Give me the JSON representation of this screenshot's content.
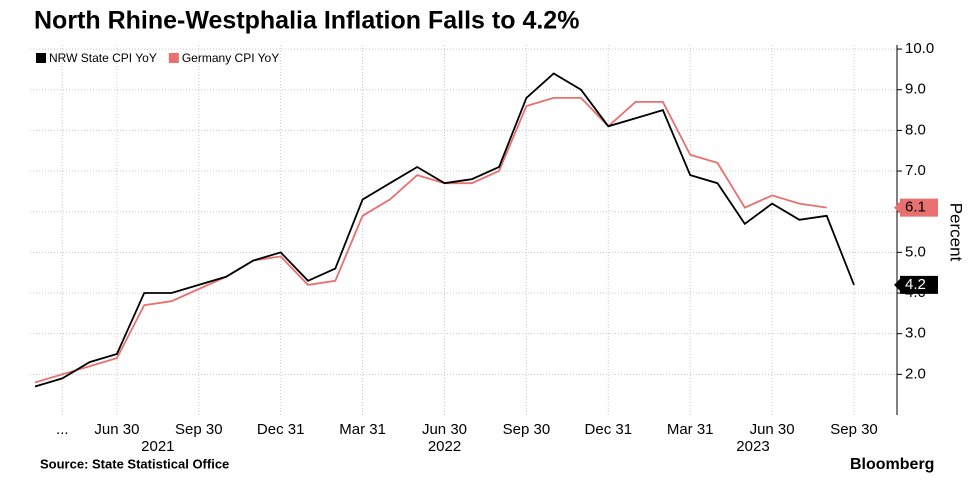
{
  "chart_data": {
    "type": "line",
    "title": "North Rhine-Westphalia Inflation Falls to 4.2%",
    "y_axis_label": "Percent",
    "source": "Source: State Statistical Office",
    "brand": "Bloomberg",
    "categories": [
      null,
      "...",
      null,
      "Jun 30",
      null,
      null,
      "Sep 30",
      null,
      null,
      "Dec 31",
      null,
      null,
      "Mar 31",
      null,
      null,
      "Jun 30",
      null,
      null,
      "Sep 30",
      null,
      null,
      "Dec 31",
      null,
      null,
      "Mar 31",
      null,
      null,
      "Jun 30",
      null,
      null,
      "Sep 30"
    ],
    "years": [
      "2021",
      "2022",
      "2023"
    ],
    "series": [
      {
        "name": "NRW State CPI YoY",
        "color": "#000000",
        "values": [
          1.7,
          1.9,
          2.3,
          2.5,
          4.0,
          4.0,
          4.2,
          4.4,
          4.8,
          5.0,
          4.3,
          4.6,
          6.3,
          6.7,
          7.1,
          6.7,
          6.8,
          7.1,
          8.8,
          9.4,
          9.0,
          8.1,
          8.3,
          8.5,
          6.9,
          6.7,
          5.7,
          6.2,
          5.8,
          5.9,
          4.2
        ]
      },
      {
        "name": "Germany CPI YoY",
        "color": "#e8706e",
        "values": [
          1.8,
          2.0,
          2.2,
          2.4,
          3.7,
          3.8,
          4.1,
          4.4,
          4.8,
          4.9,
          4.2,
          4.3,
          5.9,
          6.3,
          6.9,
          6.7,
          6.7,
          7.0,
          8.6,
          8.8,
          8.8,
          8.1,
          8.7,
          8.7,
          7.4,
          7.2,
          6.1,
          6.4,
          6.2,
          6.1,
          null
        ]
      }
    ],
    "ylim": [
      1.0,
      10.1
    ],
    "yticks": [
      {
        "value": 2,
        "label": "2.0"
      },
      {
        "value": 3,
        "label": "3.0"
      },
      {
        "value": 4,
        "label": "4.0"
      },
      {
        "value": 5,
        "label": "5.0"
      },
      {
        "value": 6,
        "label": "6.0"
      },
      {
        "value": 7,
        "label": "7.0"
      },
      {
        "value": 8,
        "label": "8.0"
      },
      {
        "value": 9,
        "label": "9.0"
      },
      {
        "value": 10,
        "label": "10.0"
      }
    ],
    "grid": true,
    "legend": "top-left"
  }
}
